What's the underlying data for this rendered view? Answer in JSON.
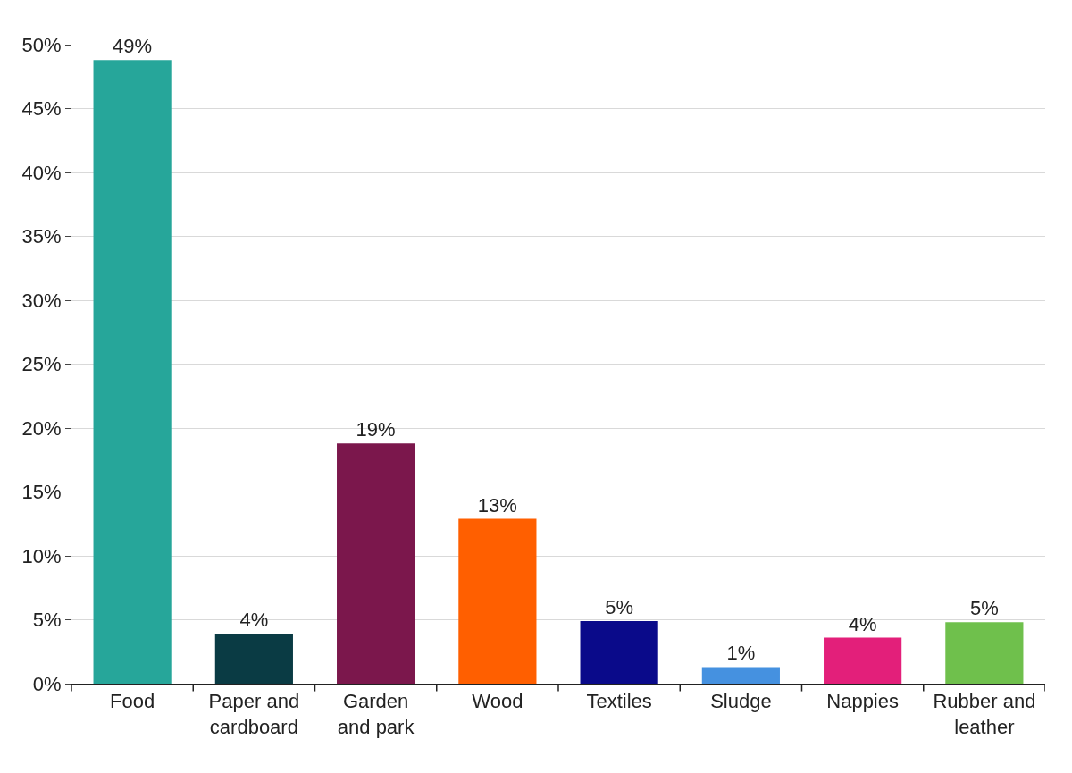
{
  "chart_data": {
    "type": "bar",
    "categories": [
      "Food",
      "Paper and\ncardboard",
      "Garden\nand park",
      "Wood",
      "Textiles",
      "Sludge",
      "Nappies",
      "Rubber and\nleather"
    ],
    "values": [
      48.8,
      3.9,
      18.8,
      12.9,
      4.9,
      1.3,
      3.6,
      4.8
    ],
    "colors": [
      "#26a69a",
      "#0a3b44",
      "#7b174c",
      "#ff5f00",
      "#0a0a8a",
      "#4591e0",
      "#e31f7a",
      "#6fc04c"
    ],
    "value_labels": [
      "49%",
      "4%",
      "19%",
      "13%",
      "5%",
      "1%",
      "4%",
      "5%"
    ],
    "ylim": [
      0,
      50
    ],
    "yticks": [
      {
        "value": 0,
        "label": "0%"
      },
      {
        "value": 5,
        "label": "5%"
      },
      {
        "value": 10,
        "label": "10%"
      },
      {
        "value": 15,
        "label": "15%"
      },
      {
        "value": 20,
        "label": "20%"
      },
      {
        "value": 25,
        "label": "25%"
      },
      {
        "value": 30,
        "label": "30%"
      },
      {
        "value": 35,
        "label": "35%"
      },
      {
        "value": 40,
        "label": "40%"
      },
      {
        "value": 45,
        "label": "45%"
      },
      {
        "value": 50,
        "label": "50%"
      }
    ],
    "grid": "y"
  }
}
